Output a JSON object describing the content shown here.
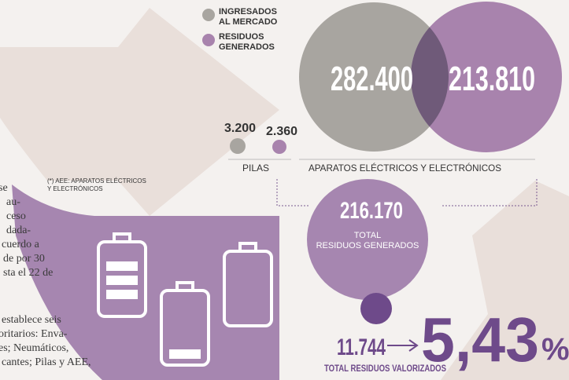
{
  "legend": {
    "entered": [
      "INGRESADOS",
      "AL MERCADO"
    ],
    "generated": [
      "RESIDUOS",
      "GENERADOS"
    ]
  },
  "pilas": {
    "entered": "3.200",
    "generated": "2.360",
    "label": "PILAS"
  },
  "aee": {
    "entered": "282.400",
    "generated": "213.810",
    "label": "APARATOS ELÉCTRICOS Y ELECTRÓNICOS"
  },
  "note": [
    "(*) AEE: APARATOS ELÉCTRICOS",
    "Y ELECTRÓNICOS"
  ],
  "total": {
    "value": "216.170",
    "label": [
      "TOTAL",
      "RESIDUOS GENERADOS"
    ]
  },
  "valorized": {
    "value": "11.744",
    "label": "TOTAL RESIDUOS VALORIZADOS",
    "percent": "5,43",
    "percent_sign": "%"
  },
  "body_text": [
    "se",
    "au-",
    "ceso",
    "dada-",
    "cuerdo a",
    "de por 30",
    "sta el 22 de",
    "establece seis",
    "oritarios: Enva-",
    "es; Neumáticos,",
    "cantes; Pilas y AEE,"
  ]
}
